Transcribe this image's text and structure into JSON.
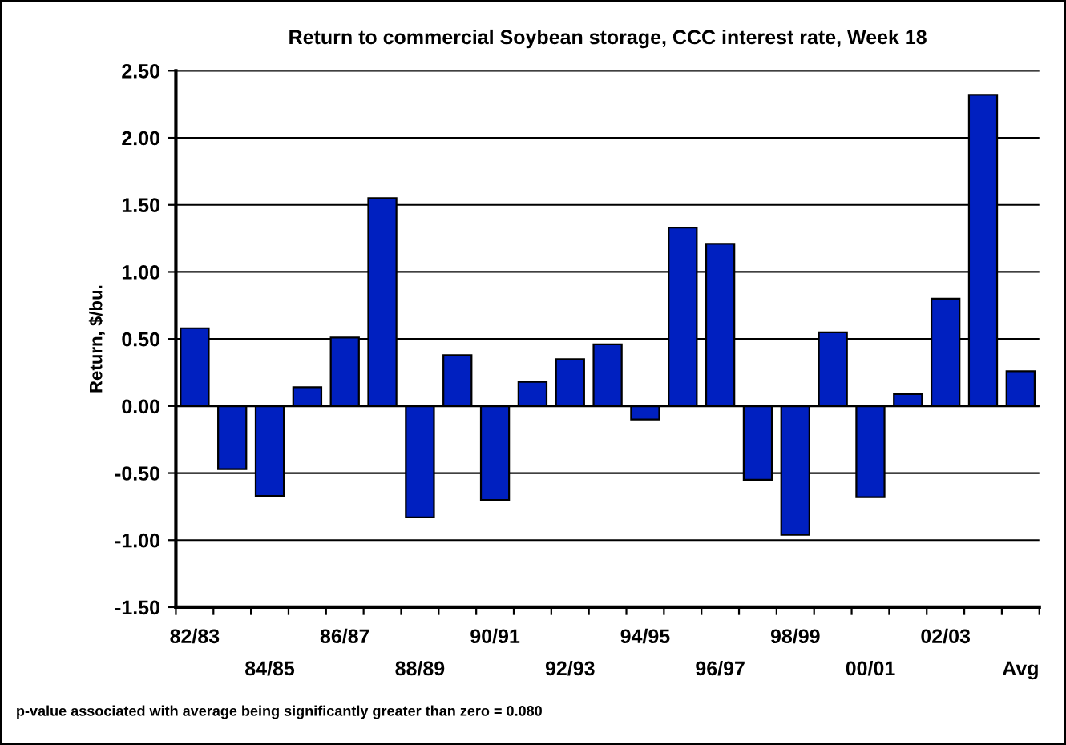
{
  "chart_data": {
    "type": "bar",
    "title": "Return to commercial Soybean storage, CCC interest rate, Week 18",
    "ylabel": "Return, $/bu.",
    "categories": [
      "82/83",
      null,
      "84/85",
      null,
      "86/87",
      null,
      "88/89",
      null,
      "90/91",
      null,
      "92/93",
      null,
      "94/95",
      null,
      "96/97",
      null,
      "98/99",
      null,
      "00/01",
      null,
      "02/03",
      null,
      "Avg"
    ],
    "values": [
      0.58,
      -0.47,
      -0.67,
      0.14,
      0.51,
      1.55,
      -0.83,
      0.38,
      -0.7,
      0.18,
      0.35,
      0.46,
      -0.1,
      1.33,
      1.21,
      -0.55,
      -0.96,
      0.55,
      -0.68,
      0.09,
      0.8,
      2.32,
      0.26
    ],
    "color": "#0020c0",
    "ylim": [
      -1.5,
      2.5
    ],
    "yticks": [
      {
        "value": -1.5,
        "label": "-1.50"
      },
      {
        "value": -1.0,
        "label": "-1.00"
      },
      {
        "value": -0.5,
        "label": "-0.50"
      },
      {
        "value": 0,
        "label": "0.00"
      },
      {
        "value": 0.5,
        "label": "0.50"
      },
      {
        "value": 1.0,
        "label": "1.00"
      },
      {
        "value": 1.5,
        "label": "1.50"
      },
      {
        "value": 2.0,
        "label": "2.00"
      },
      {
        "value": 2.5,
        "label": "2.50"
      }
    ],
    "grid": "y",
    "annotations": [
      "p-value associated with average being significantly greater than zero = 0.080"
    ]
  }
}
